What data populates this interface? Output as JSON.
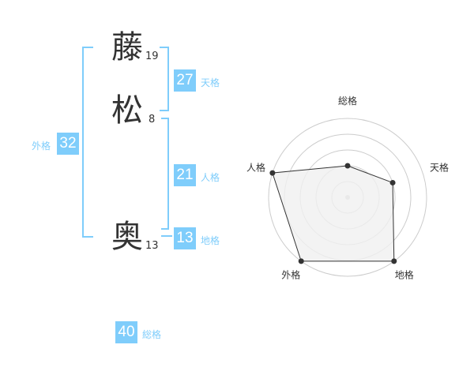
{
  "name": {
    "chars": [
      {
        "char": "藤",
        "strokes": "19"
      },
      {
        "char": "松",
        "strokes": "8"
      },
      {
        "char": "奥",
        "strokes": "13"
      }
    ]
  },
  "fortune": {
    "tenkaku": {
      "label": "天格",
      "value": "27"
    },
    "jinkaku": {
      "label": "人格",
      "value": "21"
    },
    "chikaku": {
      "label": "地格",
      "value": "13"
    },
    "gaikaku": {
      "label": "外格",
      "value": "32"
    },
    "soukaku": {
      "label": "総格",
      "value": "40"
    }
  },
  "colors": {
    "accent": "#7fcdfb",
    "radar_fill": "#f0f0f0",
    "radar_line": "#333333"
  },
  "chart_data": {
    "type": "radar",
    "axes": [
      "総格",
      "天格",
      "地格",
      "外格",
      "人格"
    ],
    "values": [
      2,
      3,
      5,
      5,
      5
    ],
    "range": [
      0,
      5
    ],
    "grid": "concentric circles"
  }
}
